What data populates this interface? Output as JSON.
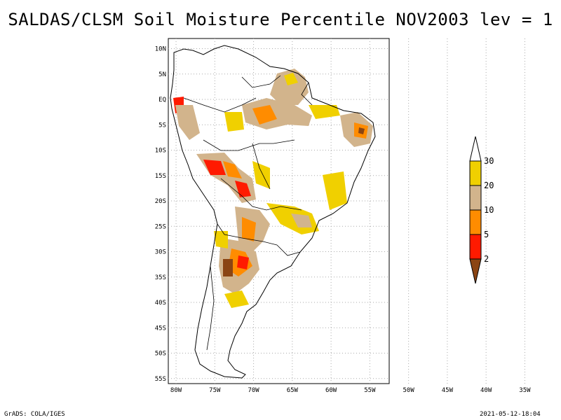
{
  "title": "SALDAS/CLSM Soil Moisture Percentile NOV2003 lev = 1",
  "footer": {
    "left": "GrADS: COLA/IGES",
    "right": "2021-05-12-18:04"
  },
  "map": {
    "lat_labels": [
      "10N",
      "5N",
      "EQ",
      "5S",
      "10S",
      "15S",
      "20S",
      "25S",
      "30S",
      "35S",
      "40S",
      "45S",
      "50S",
      "55S"
    ],
    "lon_labels": [
      "80W",
      "75W",
      "70W",
      "65W",
      "60W",
      "55W",
      "50W",
      "45W",
      "40W",
      "35W"
    ],
    "lat_values": [
      10,
      5,
      0,
      -5,
      -10,
      -15,
      -20,
      -25,
      -30,
      -35,
      -40,
      -45,
      -50,
      -55
    ],
    "lon_values": [
      -80,
      -75,
      -70,
      -65,
      -60,
      -55,
      -50,
      -45,
      -40,
      -35
    ],
    "extent": {
      "lon": [
        -81,
        -52.5
      ],
      "lat": [
        -56,
        12
      ]
    }
  },
  "colorbar": {
    "labels": [
      "30",
      "20",
      "10",
      "5",
      "2"
    ],
    "colors": [
      "#f0d000",
      "#d2b48c",
      "#ff8c00",
      "#ff1a00",
      "#8b4513"
    ]
  }
}
